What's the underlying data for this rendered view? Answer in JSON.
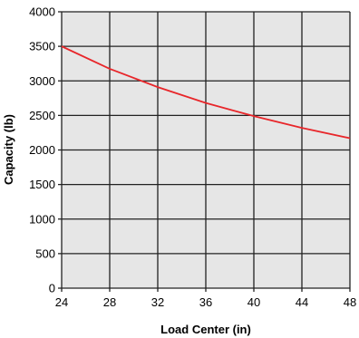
{
  "chart_data": {
    "type": "line",
    "title": "",
    "xlabel": "Load Center (in)",
    "ylabel": "Capacity (lb)",
    "xlim": [
      24,
      48
    ],
    "ylim": [
      0,
      4000
    ],
    "x_ticks": [
      24,
      28,
      32,
      36,
      40,
      44,
      48
    ],
    "y_ticks": [
      0,
      500,
      1000,
      1500,
      2000,
      2500,
      3000,
      3500,
      4000
    ],
    "grid": true,
    "legend": "none",
    "plot_background": "#e6e6e6",
    "grid_color": "#222222",
    "series": [
      {
        "color": "#e8262a",
        "x": [
          24,
          28,
          32,
          36,
          40,
          44,
          48
        ],
        "y": [
          3500,
          3175,
          2910,
          2680,
          2490,
          2320,
          2170
        ]
      }
    ]
  }
}
